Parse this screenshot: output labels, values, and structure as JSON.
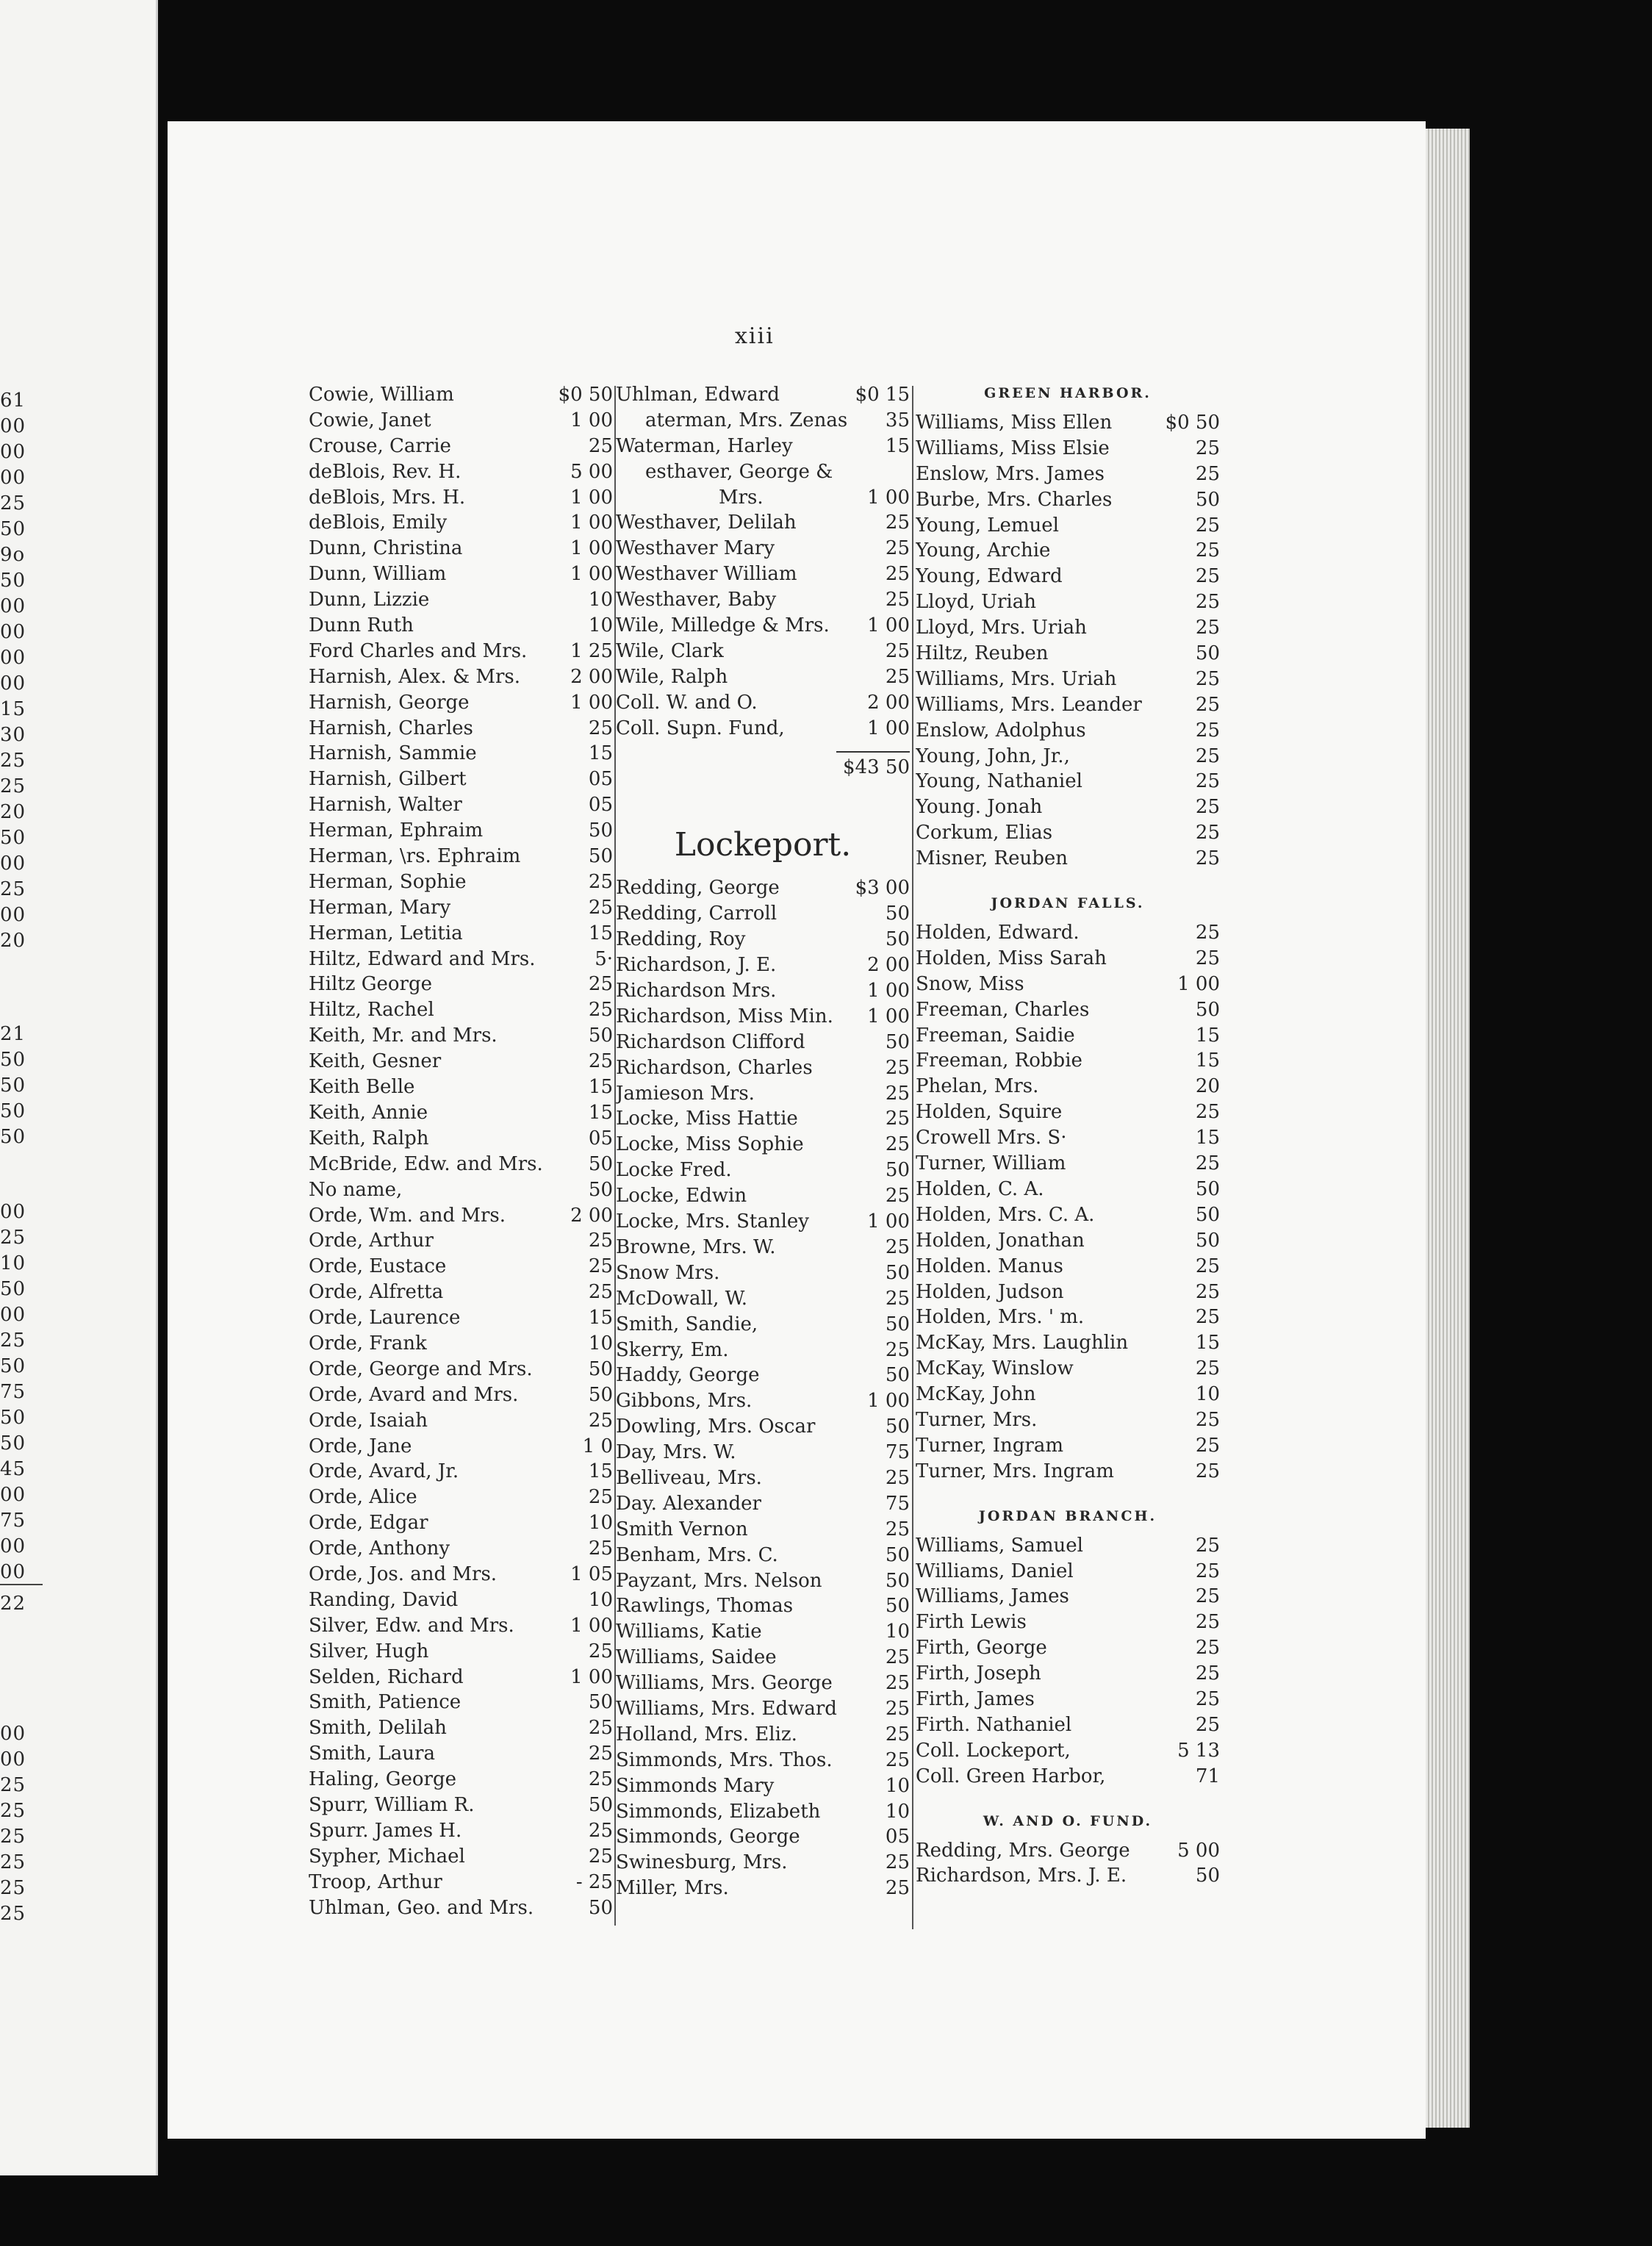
{
  "page_number": "xiii",
  "left_page_fragment": {
    "blocks": [
      [
        "61",
        "00",
        "00",
        "00",
        "25",
        "50",
        "9o",
        "50",
        "00",
        "00",
        "00",
        "00",
        "15",
        "30",
        "25",
        "25",
        "20",
        "50",
        "00",
        "25",
        "00",
        "20"
      ],
      [
        "21",
        "50",
        "50",
        "50",
        "50"
      ],
      [
        "00",
        "25",
        "10",
        "50",
        "00",
        "25",
        "50",
        "75",
        "50",
        "50",
        "45",
        "00",
        "75",
        "00",
        "00"
      ],
      [
        "22"
      ],
      [
        "00",
        "00",
        "25",
        "25",
        "25",
        "25",
        "25",
        "25"
      ]
    ]
  },
  "column1": [
    {
      "name": "Cowie, William",
      "amount": "$0 50"
    },
    {
      "name": "Cowie, Janet",
      "amount": "1 00"
    },
    {
      "name": "Crouse, Carrie",
      "amount": "25"
    },
    {
      "name": "deBlois, Rev. H.",
      "amount": "5 00"
    },
    {
      "name": "deBlois, Mrs. H.",
      "amount": "1 00"
    },
    {
      "name": "deBlois, Emily",
      "amount": "1 00"
    },
    {
      "name": "Dunn, Christina",
      "amount": "1 00"
    },
    {
      "name": "Dunn, William",
      "amount": "1 00"
    },
    {
      "name": "Dunn, Lizzie",
      "amount": "10"
    },
    {
      "name": "Dunn Ruth",
      "amount": "10"
    },
    {
      "name": "Ford Charles and Mrs.",
      "amount": "1 25"
    },
    {
      "name": "Harnish, Alex. & Mrs.",
      "amount": "2 00"
    },
    {
      "name": "Harnish, George",
      "amount": "1 00"
    },
    {
      "name": "Harnish, Charles",
      "amount": "25"
    },
    {
      "name": "Harnish, Sammie",
      "amount": "15"
    },
    {
      "name": "Harnish, Gilbert",
      "amount": "05"
    },
    {
      "name": "Harnish, Walter",
      "amount": "05"
    },
    {
      "name": "Herman, Ephraim",
      "amount": "50"
    },
    {
      "name": "Herman, \\rs. Ephraim",
      "amount": "50"
    },
    {
      "name": "Herman, Sophie",
      "amount": "25"
    },
    {
      "name": "Herman, Mary",
      "amount": "25"
    },
    {
      "name": "Herman, Letitia",
      "amount": "15"
    },
    {
      "name": "Hiltz, Edward and Mrs.",
      "amount": "5·"
    },
    {
      "name": "Hiltz George",
      "amount": "25"
    },
    {
      "name": "Hiltz, Rachel",
      "amount": "25"
    },
    {
      "name": "Keith, Mr. and Mrs.",
      "amount": "50"
    },
    {
      "name": "Keith, Gesner",
      "amount": "25"
    },
    {
      "name": "Keith Belle",
      "amount": "15"
    },
    {
      "name": "Keith, Annie",
      "amount": "15"
    },
    {
      "name": "Keith, Ralph",
      "amount": "05"
    },
    {
      "name": "McBride, Edw. and Mrs.",
      "amount": "50"
    },
    {
      "name": "No name,",
      "amount": "50"
    },
    {
      "name": "Orde, Wm. and Mrs.",
      "amount": "2 00"
    },
    {
      "name": "Orde, Arthur",
      "amount": "25"
    },
    {
      "name": "Orde, Eustace",
      "amount": "25"
    },
    {
      "name": "Orde, Alfretta",
      "amount": "25"
    },
    {
      "name": "Orde, Laurence",
      "amount": "15"
    },
    {
      "name": "Orde, Frank",
      "amount": "10"
    },
    {
      "name": "Orde, George and Mrs.",
      "amount": "50"
    },
    {
      "name": "Orde, Avard and Mrs.",
      "amount": "50"
    },
    {
      "name": "Orde, Isaiah",
      "amount": "25"
    },
    {
      "name": "Orde, Jane",
      "amount": "1 0 "
    },
    {
      "name": "Orde, Avard, Jr.",
      "amount": "15"
    },
    {
      "name": "Orde, Alice",
      "amount": "25"
    },
    {
      "name": "Orde, Edgar",
      "amount": "10"
    },
    {
      "name": "Orde, Anthony",
      "amount": "25"
    },
    {
      "name": "Orde, Jos. and Mrs.",
      "amount": "1 05"
    },
    {
      "name": "Randing, David",
      "amount": "10"
    },
    {
      "name": "Silver, Edw. and Mrs.",
      "amount": "1 00"
    },
    {
      "name": "Silver, Hugh",
      "amount": "25"
    },
    {
      "name": "Selden, Richard",
      "amount": "1 00"
    },
    {
      "name": "Smith, Patience",
      "amount": "50"
    },
    {
      "name": "Smith, Delilah",
      "amount": "25"
    },
    {
      "name": "Smith, Laura",
      "amount": "25"
    },
    {
      "name": "Haling, George",
      "amount": "25"
    },
    {
      "name": "Spurr, William R.",
      "amount": "50"
    },
    {
      "name": "Spurr. James H.",
      "amount": "25"
    },
    {
      "name": "Sypher, Michael",
      "amount": "25"
    },
    {
      "name": "Troop, Arthur",
      "amount": "- 25"
    },
    {
      "name": "Uhlman, Geo. and Mrs.",
      "amount": "50"
    }
  ],
  "column2": {
    "entries": [
      {
        "name": "Uhlman, Edward",
        "amount": "$0 15"
      },
      {
        "name": "aterman, Mrs. Zenas",
        "amount": "35"
      },
      {
        "name": "Waterman, Harley",
        "amount": "15"
      },
      {
        "name": "esthaver, George &",
        "amount": ""
      },
      {
        "name": "Mrs.",
        "amount": "1 00",
        "continuation": true
      },
      {
        "name": "Westhaver, Delilah",
        "amount": "25"
      },
      {
        "name": "Westhaver Mary",
        "amount": "25"
      },
      {
        "name": "Westhaver William",
        "amount": "25"
      },
      {
        "name": "Westhaver, Baby",
        "amount": "25"
      },
      {
        "name": "Wile, Milledge & Mrs.",
        "amount": "1 00"
      },
      {
        "name": "Wile, Clark",
        "amount": "25"
      },
      {
        "name": "Wile, Ralph",
        "amount": "25"
      },
      {
        "name": "Coll. W. and O.",
        "amount": "2 00"
      },
      {
        "name": "Coll. Supn. Fund,",
        "amount": "1 00"
      }
    ],
    "total": "$43 50",
    "town_heading": "Lockeport.",
    "town_entries": [
      {
        "name": "Redding, George",
        "amount": "$3 00"
      },
      {
        "name": "Redding, Carroll",
        "amount": "50"
      },
      {
        "name": "Redding, Roy",
        "amount": "50"
      },
      {
        "name": "Richardson, J. E.",
        "amount": "2 00"
      },
      {
        "name": "Richardson Mrs.",
        "amount": "1 00"
      },
      {
        "name": "Richardson, Miss Min.",
        "amount": "1 00"
      },
      {
        "name": "Richardson Clifford",
        "amount": "50"
      },
      {
        "name": "Richardson, Charles",
        "amount": "25"
      },
      {
        "name": "Jamieson Mrs.",
        "amount": "25"
      },
      {
        "name": "Locke, Miss Hattie",
        "amount": "25"
      },
      {
        "name": "Locke, Miss Sophie",
        "amount": "25"
      },
      {
        "name": "Locke Fred.",
        "amount": "50"
      },
      {
        "name": "Locke, Edwin",
        "amount": "25"
      },
      {
        "name": "Locke, Mrs. Stanley",
        "amount": "1 00"
      },
      {
        "name": "Browne, Mrs. W.",
        "amount": "25"
      },
      {
        "name": "Snow Mrs.",
        "amount": "50"
      },
      {
        "name": "McDowall, W.",
        "amount": "25"
      },
      {
        "name": "Smith, Sandie,",
        "amount": "50"
      },
      {
        "name": "Skerry, Em.",
        "amount": "25"
      },
      {
        "name": "Haddy, George",
        "amount": "50"
      },
      {
        "name": "Gibbons, Mrs.",
        "amount": "1 00"
      },
      {
        "name": "Dowling, Mrs. Oscar",
        "amount": "50"
      },
      {
        "name": "Day, Mrs. W.",
        "amount": "75"
      },
      {
        "name": "Belliveau, Mrs.",
        "amount": "25"
      },
      {
        "name": "Day. Alexander",
        "amount": "75"
      },
      {
        "name": "Smith Vernon",
        "amount": "25"
      },
      {
        "name": "Benham, Mrs. C.",
        "amount": "50"
      },
      {
        "name": "Payzant, Mrs. Nelson",
        "amount": "50"
      },
      {
        "name": "Rawlings, Thomas",
        "amount": "50"
      },
      {
        "name": "Williams, Katie",
        "amount": "10"
      },
      {
        "name": "Williams, Saidee",
        "amount": "25"
      },
      {
        "name": "Williams, Mrs. George",
        "amount": "25"
      },
      {
        "name": "Williams, Mrs. Edward",
        "amount": "25"
      },
      {
        "name": "Holland, Mrs. Eliz.",
        "amount": "25"
      },
      {
        "name": "Simmonds, Mrs. Thos.",
        "amount": "25"
      },
      {
        "name": "Simmonds Mary",
        "amount": "10"
      },
      {
        "name": "Simmonds, Elizabeth",
        "amount": "10"
      },
      {
        "name": "Simmonds, George",
        "amount": "05"
      },
      {
        "name": "Swinesburg, Mrs.",
        "amount": "25"
      },
      {
        "name": "Miller, Mrs.",
        "amount": "25"
      }
    ]
  },
  "column3": [
    {
      "heading": "GREEN HARBOR.",
      "entries": [
        {
          "name": "Williams, Miss Ellen",
          "amount": "$0 50"
        },
        {
          "name": "Williams, Miss Elsie",
          "amount": "25"
        },
        {
          "name": "Enslow, Mrs. James",
          "amount": "25"
        },
        {
          "name": "Burbe, Mrs. Charles",
          "amount": "50"
        },
        {
          "name": "Young, Lemuel",
          "amount": "25"
        },
        {
          "name": "Young, Archie",
          "amount": "25"
        },
        {
          "name": "Young, Edward",
          "amount": "25"
        },
        {
          "name": "Lloyd, Uriah",
          "amount": "25"
        },
        {
          "name": "Lloyd, Mrs. Uriah",
          "amount": "25"
        },
        {
          "name": "Hiltz, Reuben",
          "amount": "50"
        },
        {
          "name": "Williams, Mrs. Uriah",
          "amount": "25"
        },
        {
          "name": "Williams, Mrs. Leander",
          "amount": "25"
        },
        {
          "name": "Enslow, Adolphus",
          "amount": "25"
        },
        {
          "name": "Young, John, Jr.,",
          "amount": "25"
        },
        {
          "name": "Young, Nathaniel",
          "amount": "25"
        },
        {
          "name": "Young. Jonah",
          "amount": "25"
        },
        {
          "name": "Corkum, Elias",
          "amount": "25"
        },
        {
          "name": "Misner, Reuben",
          "amount": "25"
        }
      ]
    },
    {
      "heading": "JORDAN FALLS.",
      "entries": [
        {
          "name": "Holden, Edward.",
          "amount": "25"
        },
        {
          "name": "Holden, Miss Sarah",
          "amount": "25"
        },
        {
          "name": "Snow, Miss",
          "amount": "1 00"
        },
        {
          "name": "Freeman, Charles",
          "amount": "50"
        },
        {
          "name": "Freeman, Saidie",
          "amount": "15"
        },
        {
          "name": "Freeman, Robbie",
          "amount": "15"
        },
        {
          "name": "Phelan, Mrs.",
          "amount": "20"
        },
        {
          "name": "Holden, Squire",
          "amount": "25"
        },
        {
          "name": "Crowell Mrs. S·",
          "amount": "15"
        },
        {
          "name": "Turner, William",
          "amount": "25"
        },
        {
          "name": "Holden, C. A.",
          "amount": "50"
        },
        {
          "name": "Holden, Mrs. C. A.",
          "amount": "50"
        },
        {
          "name": "Holden, Jonathan",
          "amount": "50"
        },
        {
          "name": "Holden. Manus",
          "amount": "25"
        },
        {
          "name": "Holden, Judson",
          "amount": "25"
        },
        {
          "name": "Holden, Mrs. ' m.",
          "amount": "25"
        },
        {
          "name": "McKay, Mrs. Laughlin",
          "amount": "15"
        },
        {
          "name": "McKay, Winslow",
          "amount": "25"
        },
        {
          "name": "McKay, John",
          "amount": "10"
        },
        {
          "name": "Turner, Mrs.",
          "amount": "25"
        },
        {
          "name": "Turner, Ingram",
          "amount": "25"
        },
        {
          "name": "Turner, Mrs. Ingram",
          "amount": "25"
        }
      ]
    },
    {
      "heading": "JORDAN BRANCH.",
      "entries": [
        {
          "name": "Williams, Samuel",
          "amount": "25"
        },
        {
          "name": "Williams, Daniel",
          "amount": "25"
        },
        {
          "name": "Williams, James",
          "amount": "25"
        },
        {
          "name": "Firth Lewis",
          "amount": "25"
        },
        {
          "name": "Firth, George",
          "amount": "25"
        },
        {
          "name": "Firth, Joseph",
          "amount": "25"
        },
        {
          "name": "Firth, James",
          "amount": "25"
        },
        {
          "name": "Firth. Nathaniel",
          "amount": "25"
        },
        {
          "name": "Coll. Lockeport,",
          "amount": "5 13"
        },
        {
          "name": "Coll. Green Harbor,",
          "amount": "71"
        }
      ]
    },
    {
      "heading": "W. AND O. FUND.",
      "entries": [
        {
          "name": "Redding, Mrs. George",
          "amount": "5 00"
        },
        {
          "name": "Richardson, Mrs. J. E.",
          "amount": "50"
        }
      ]
    }
  ]
}
